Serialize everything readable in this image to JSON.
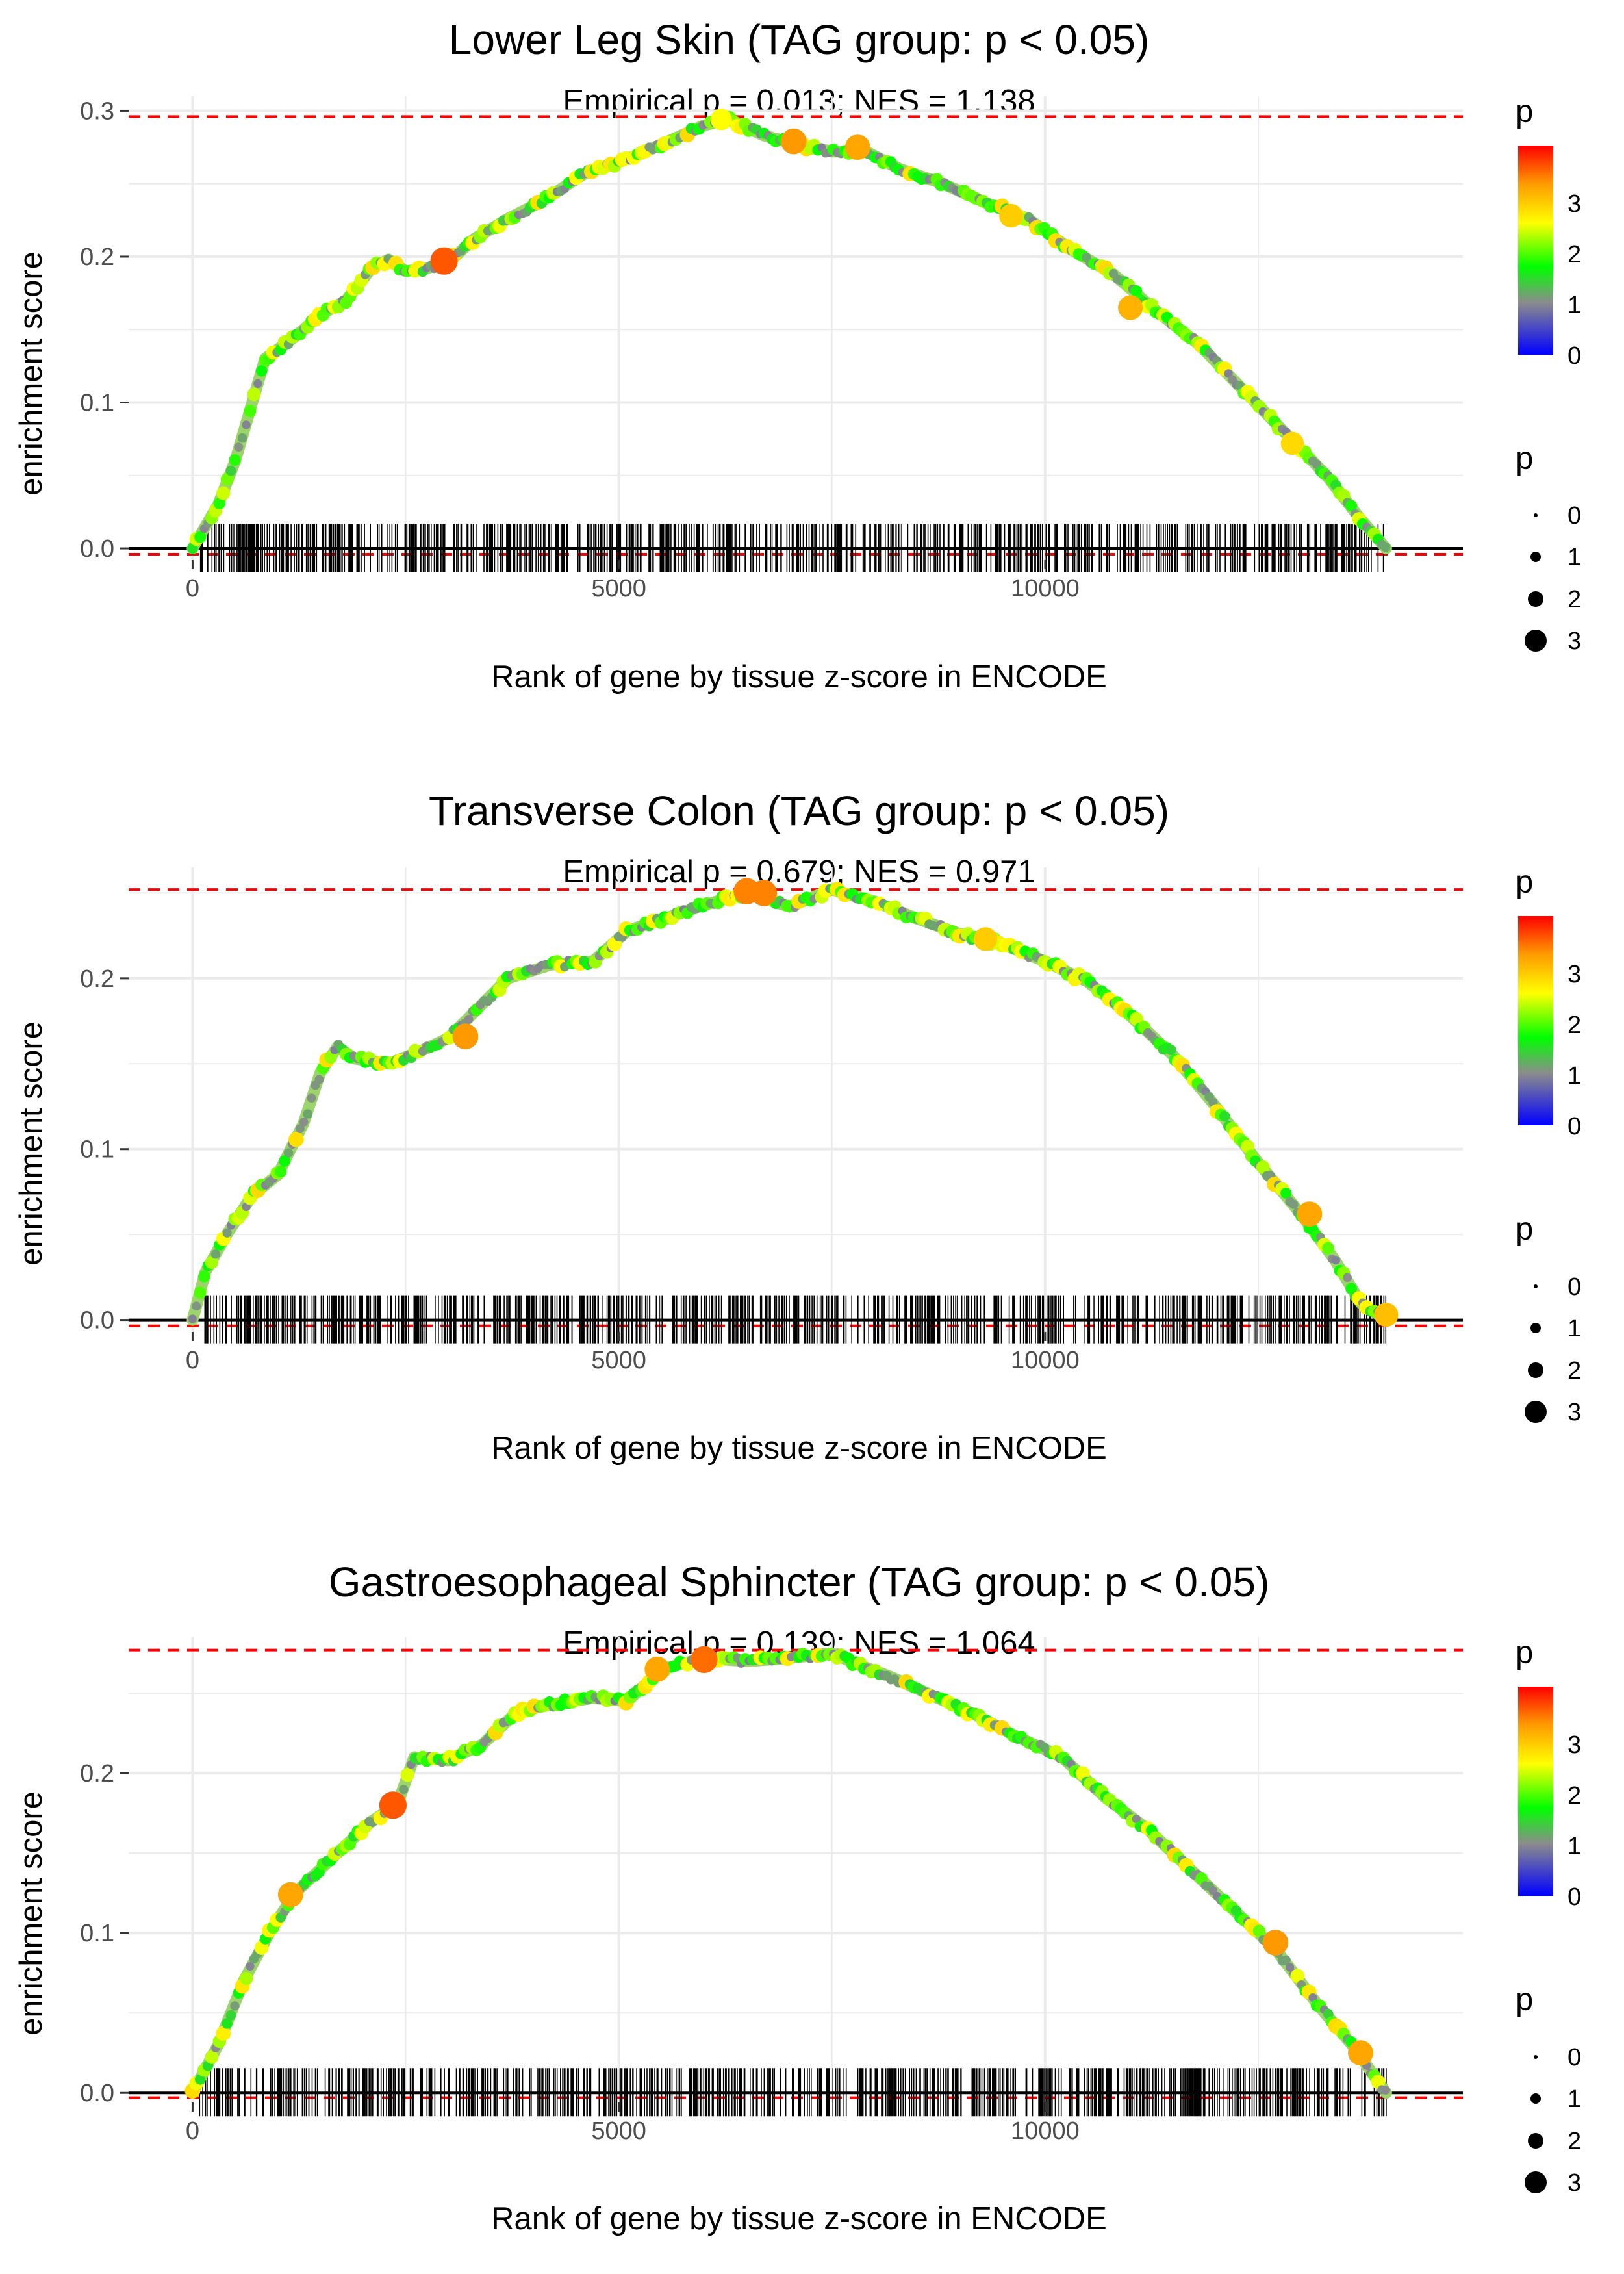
{
  "colors": {
    "grid": "#ebebeb",
    "threshold_line": "#ff0000",
    "axis": "#000000",
    "tick_text": "#4d4d4d",
    "gradient": [
      "#0000ff",
      "#8c8c8c",
      "#00ff00",
      "#ffff00",
      "#ff9900",
      "#ff0000"
    ]
  },
  "chart_data": [
    {
      "type": "line",
      "title": "Lower Leg Skin (TAG group: p < 0.05)",
      "subtitle": "Empirical p = 0.013; NES = 1.138",
      "xlabel": "Rank of gene by tissue z-score in ENCODE",
      "ylabel": "enrichment score",
      "xlim": [
        -750,
        14900
      ],
      "ylim": [
        -0.008,
        0.31
      ],
      "x_ticks": [
        0,
        5000,
        10000
      ],
      "x_tick_labels": [
        "0",
        "5000",
        "10000"
      ],
      "y_ticks": [
        0.0,
        0.1,
        0.2,
        0.3
      ],
      "y_tick_labels": [
        "0.0",
        "0.1",
        "0.2",
        "0.3"
      ],
      "max_es": 0.296,
      "gene_count_max": 14000,
      "curve": [
        [
          0,
          0
        ],
        [
          300,
          0.03
        ],
        [
          500,
          0.06
        ],
        [
          700,
          0.1
        ],
        [
          850,
          0.13
        ],
        [
          1200,
          0.145
        ],
        [
          1500,
          0.16
        ],
        [
          1800,
          0.17
        ],
        [
          2100,
          0.192
        ],
        [
          2300,
          0.198
        ],
        [
          2500,
          0.19
        ],
        [
          2750,
          0.192
        ],
        [
          3000,
          0.196
        ],
        [
          3300,
          0.212
        ],
        [
          3700,
          0.226
        ],
        [
          4100,
          0.238
        ],
        [
          4600,
          0.257
        ],
        [
          5100,
          0.267
        ],
        [
          5500,
          0.277
        ],
        [
          6000,
          0.29
        ],
        [
          6300,
          0.294
        ],
        [
          6700,
          0.283
        ],
        [
          7100,
          0.277
        ],
        [
          7500,
          0.272
        ],
        [
          7900,
          0.272
        ],
        [
          8300,
          0.26
        ],
        [
          8800,
          0.25
        ],
        [
          9300,
          0.237
        ],
        [
          9800,
          0.226
        ],
        [
          10300,
          0.205
        ],
        [
          10800,
          0.188
        ],
        [
          11300,
          0.163
        ],
        [
          11800,
          0.14
        ],
        [
          12300,
          0.11
        ],
        [
          12800,
          0.08
        ],
        [
          13300,
          0.05
        ],
        [
          13700,
          0.02
        ],
        [
          14000,
          0
        ]
      ],
      "highlights": [
        [
          2950,
          0.197,
          3.6
        ],
        [
          6200,
          0.294,
          2.5
        ],
        [
          7050,
          0.279,
          3.3
        ],
        [
          7800,
          0.275,
          3.2
        ],
        [
          9600,
          0.228,
          2.9
        ],
        [
          11000,
          0.165,
          3.1
        ],
        [
          12900,
          0.072,
          2.8
        ]
      ],
      "legend_color": {
        "title": "p",
        "ticks": [
          "0",
          "1",
          "2",
          "3"
        ]
      },
      "legend_size": {
        "title": "p",
        "labels": [
          "0",
          "1",
          "2",
          "3"
        ]
      }
    },
    {
      "type": "line",
      "title": "Transverse Colon (TAG group: p < 0.05)",
      "subtitle": "Empirical p = 0.679; NES = 0.971",
      "xlabel": "Rank of gene by tissue z-score in ENCODE",
      "ylabel": "enrichment score",
      "xlim": [
        -750,
        14900
      ],
      "ylim": [
        -0.007,
        0.265
      ],
      "x_ticks": [
        0,
        5000,
        10000
      ],
      "x_tick_labels": [
        "0",
        "5000",
        "10000"
      ],
      "y_ticks": [
        0.0,
        0.1,
        0.2
      ],
      "y_tick_labels": [
        "0.0",
        "0.1",
        "0.2"
      ],
      "max_es": 0.252,
      "gene_count_max": 14000,
      "curve": [
        [
          0,
          0
        ],
        [
          150,
          0.028
        ],
        [
          400,
          0.05
        ],
        [
          700,
          0.073
        ],
        [
          1000,
          0.085
        ],
        [
          1300,
          0.115
        ],
        [
          1500,
          0.145
        ],
        [
          1700,
          0.16
        ],
        [
          1900,
          0.153
        ],
        [
          2300,
          0.15
        ],
        [
          2700,
          0.158
        ],
        [
          3000,
          0.165
        ],
        [
          3300,
          0.18
        ],
        [
          3700,
          0.2
        ],
        [
          4200,
          0.208
        ],
        [
          4700,
          0.21
        ],
        [
          5100,
          0.228
        ],
        [
          5600,
          0.236
        ],
        [
          6000,
          0.243
        ],
        [
          6500,
          0.25
        ],
        [
          7000,
          0.242
        ],
        [
          7500,
          0.252
        ],
        [
          8000,
          0.245
        ],
        [
          8500,
          0.235
        ],
        [
          9000,
          0.226
        ],
        [
          9500,
          0.22
        ],
        [
          10000,
          0.21
        ],
        [
          10500,
          0.198
        ],
        [
          11000,
          0.178
        ],
        [
          11500,
          0.155
        ],
        [
          12000,
          0.125
        ],
        [
          12500,
          0.092
        ],
        [
          13000,
          0.062
        ],
        [
          13400,
          0.035
        ],
        [
          13700,
          0.01
        ],
        [
          14000,
          0
        ]
      ],
      "highlights": [
        [
          3200,
          0.166,
          3.3
        ],
        [
          6500,
          0.251,
          3.4
        ],
        [
          6700,
          0.25,
          3.4
        ],
        [
          9300,
          0.223,
          2.9
        ],
        [
          13100,
          0.062,
          3.2
        ],
        [
          14000,
          0.003,
          3.0
        ]
      ],
      "legend_color": {
        "title": "p",
        "ticks": [
          "0",
          "1",
          "2",
          "3"
        ]
      },
      "legend_size": {
        "title": "p",
        "labels": [
          "0",
          "1",
          "2",
          "3"
        ]
      }
    },
    {
      "type": "line",
      "title": "Gastroesophageal Sphincter (TAG group: p < 0.05)",
      "subtitle": "Empirical p = 0.139; NES = 1.064",
      "xlabel": "Rank of gene by tissue z-score in ENCODE",
      "ylabel": "enrichment score",
      "xlim": [
        -750,
        14900
      ],
      "ylim": [
        -0.006,
        0.285
      ],
      "x_ticks": [
        0,
        5000,
        10000
      ],
      "x_tick_labels": [
        "0",
        "5000",
        "10000"
      ],
      "y_ticks": [
        0.0,
        0.1,
        0.2
      ],
      "y_tick_labels": [
        "0.0",
        "0.1",
        "0.2"
      ],
      "max_es": 0.277,
      "gene_count_max": 14000,
      "curve": [
        [
          0,
          0
        ],
        [
          300,
          0.03
        ],
        [
          600,
          0.07
        ],
        [
          900,
          0.1
        ],
        [
          1200,
          0.125
        ],
        [
          1500,
          0.14
        ],
        [
          1800,
          0.155
        ],
        [
          2100,
          0.17
        ],
        [
          2400,
          0.18
        ],
        [
          2600,
          0.21
        ],
        [
          3000,
          0.208
        ],
        [
          3400,
          0.218
        ],
        [
          3800,
          0.238
        ],
        [
          4200,
          0.243
        ],
        [
          4700,
          0.247
        ],
        [
          5100,
          0.245
        ],
        [
          5500,
          0.265
        ],
        [
          6000,
          0.272
        ],
        [
          6500,
          0.27
        ],
        [
          7000,
          0.272
        ],
        [
          7500,
          0.275
        ],
        [
          7800,
          0.268
        ],
        [
          8200,
          0.26
        ],
        [
          8700,
          0.248
        ],
        [
          9200,
          0.236
        ],
        [
          9700,
          0.222
        ],
        [
          10200,
          0.21
        ],
        [
          10700,
          0.185
        ],
        [
          11200,
          0.165
        ],
        [
          11700,
          0.14
        ],
        [
          12200,
          0.115
        ],
        [
          12700,
          0.09
        ],
        [
          13200,
          0.055
        ],
        [
          13600,
          0.03
        ],
        [
          14000,
          0
        ]
      ],
      "highlights": [
        [
          1150,
          0.124,
          3.2
        ],
        [
          2350,
          0.18,
          3.6
        ],
        [
          5450,
          0.265,
          3.2
        ],
        [
          6000,
          0.271,
          3.5
        ],
        [
          12700,
          0.094,
          3.3
        ],
        [
          13700,
          0.025,
          3.2
        ]
      ],
      "legend_color": {
        "title": "p",
        "ticks": [
          "0",
          "1",
          "2",
          "3"
        ]
      },
      "legend_size": {
        "title": "p",
        "labels": [
          "0",
          "1",
          "2",
          "3"
        ]
      }
    }
  ]
}
